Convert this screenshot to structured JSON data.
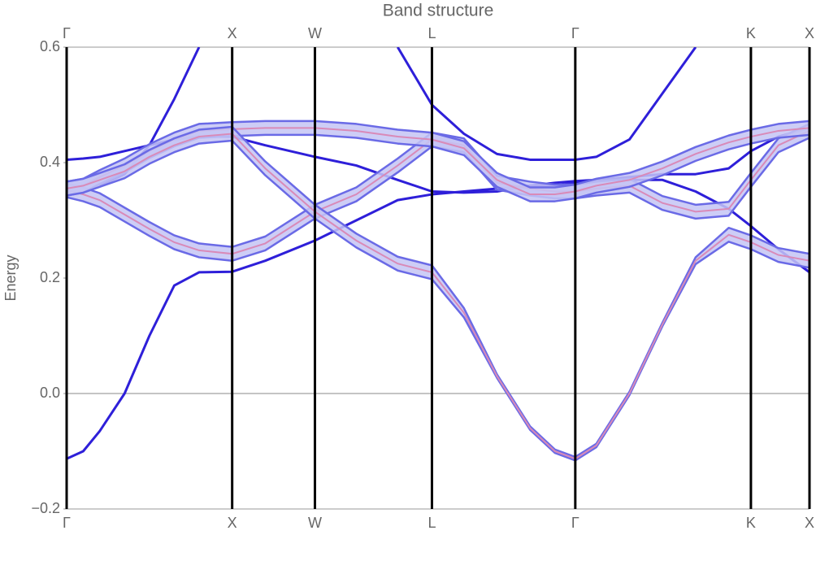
{
  "chart_data": {
    "type": "line",
    "title": "Band structure",
    "ylabel": "Energy",
    "x": [
      0,
      0.1,
      0.2,
      0.35,
      0.5,
      0.65,
      0.8,
      1.0,
      1.2,
      1.5,
      1.75,
      2.0,
      2.207,
      2.4,
      2.6,
      2.8,
      2.95,
      3.073,
      3.2,
      3.4,
      3.6,
      3.8,
      4.0,
      4.134,
      4.3,
      4.488
    ],
    "xlim": [
      0,
      4.488
    ],
    "xticks": [
      {
        "value": 0,
        "label": "Γ"
      },
      {
        "value": 1.0,
        "label": "X"
      },
      {
        "value": 1.5,
        "label": "W"
      },
      {
        "value": 2.207,
        "label": "L"
      },
      {
        "value": 3.073,
        "label": "Γ"
      },
      {
        "value": 4.134,
        "label": "K"
      },
      {
        "value": 4.488,
        "label": "X"
      }
    ],
    "ylim": [
      -0.2,
      0.6
    ],
    "yticks": [
      {
        "value": -0.2,
        "label": "−0.2"
      },
      {
        "value": 0,
        "label": "0.0"
      },
      {
        "value": 0.2,
        "label": "0.2"
      },
      {
        "value": 0.4,
        "label": "0.4"
      },
      {
        "value": 0.6,
        "label": "0.6"
      }
    ],
    "xgrid": true,
    "zero_line": true,
    "series": [
      {
        "color": "#2e1fd9",
        "values": [
          -0.113,
          -0.1,
          -0.065,
          0.0,
          0.1,
          0.187,
          0.21,
          0.211,
          0.23,
          0.265,
          0.3,
          0.335,
          0.345,
          0.35,
          0.355,
          0.36,
          0.36,
          0.365,
          0.37,
          0.375,
          0.38,
          0.38,
          0.39,
          0.42,
          0.445,
          0.46
        ]
      },
      {
        "color": "#2e1fd9",
        "values": [
          0.405,
          0.407,
          0.41,
          0.42,
          0.43,
          0.44,
          0.445,
          0.445,
          0.43,
          0.41,
          0.395,
          0.37,
          0.35,
          0.348,
          0.35,
          0.36,
          0.365,
          0.368,
          0.37,
          0.37,
          0.37,
          0.35,
          0.32,
          0.29,
          0.25,
          0.21
        ]
      },
      {
        "color": "#2e1fd9",
        "values": [
          0.34,
          null,
          0.36,
          0.38,
          0.43,
          0.51,
          0.6,
          null,
          null,
          null,
          null,
          0.6,
          0.5,
          0.45,
          0.415,
          0.405,
          0.405,
          0.405,
          0.41,
          0.44,
          0.52,
          0.6,
          null,
          null,
          null,
          null
        ]
      },
      {
        "color": "#6a6ae6",
        "fill": "#c4c4f4",
        "center_color": "#d98ab8",
        "values": [
          0.352,
          0.345,
          0.335,
          0.31,
          0.285,
          0.262,
          0.248,
          0.242,
          0.26,
          0.315,
          0.345,
          0.395,
          0.44,
          0.43,
          0.365,
          0.355,
          0.35,
          0.35,
          0.355,
          0.36,
          0.33,
          0.315,
          0.32,
          0.37,
          0.43,
          0.455
        ],
        "errors": [
          0.012,
          0.012,
          0.012,
          0.012,
          0.012,
          0.012,
          0.012,
          0.012,
          0.012,
          0.012,
          0.012,
          0.012,
          0.012,
          0.012,
          0.012,
          0.012,
          0.012,
          0.012,
          0.012,
          0.012,
          0.012,
          0.012,
          0.012,
          0.012,
          0.012,
          0.012
        ]
      },
      {
        "color": "#6a6ae6",
        "fill": "#c4c4f4",
        "center_color": "#d98ab8",
        "values": [
          0.355,
          0.36,
          0.375,
          0.395,
          0.42,
          0.44,
          0.455,
          0.458,
          0.46,
          0.46,
          0.455,
          0.445,
          0.44,
          0.425,
          0.37,
          0.345,
          0.345,
          0.35,
          0.36,
          0.37,
          0.39,
          0.415,
          0.435,
          0.445,
          0.455,
          0.46
        ],
        "errors": [
          0.012,
          0.012,
          0.012,
          0.012,
          0.012,
          0.012,
          0.012,
          0.012,
          0.012,
          0.012,
          0.012,
          0.012,
          0.012,
          0.012,
          0.012,
          0.012,
          0.012,
          0.012,
          0.012,
          0.012,
          0.012,
          0.012,
          0.012,
          0.012,
          0.012,
          0.012
        ]
      },
      {
        "color": "#6a6ae6",
        "fill": "#c4c4f4",
        "center_color": "#d98ab8",
        "values": [
          0.355,
          0.36,
          0.37,
          0.385,
          0.41,
          0.43,
          0.445,
          0.45,
          0.39,
          0.315,
          0.265,
          0.225,
          0.21,
          0.14,
          0.03,
          -0.06,
          -0.1,
          -0.113,
          -0.09,
          0.0,
          0.12,
          0.23,
          0.275,
          0.262,
          0.24,
          0.23
        ],
        "errors": [
          0.012,
          0.012,
          0.012,
          0.012,
          0.012,
          0.012,
          0.012,
          0.012,
          0.012,
          0.012,
          0.012,
          0.012,
          0.012,
          0.008,
          0.003,
          0.003,
          0.003,
          0.003,
          0.003,
          0.003,
          0.003,
          0.006,
          0.012,
          0.012,
          0.012,
          0.012
        ]
      }
    ]
  }
}
